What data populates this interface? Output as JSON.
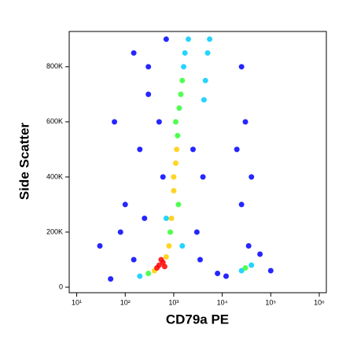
{
  "chart_data": {
    "type": "scatter",
    "x_label": "CD79a PE",
    "y_label": "Side Scatter",
    "x_scale": "log",
    "xlim": [
      7,
      1400000
    ],
    "xticks": [
      {
        "value": 10,
        "label": "10¹"
      },
      {
        "value": 100,
        "label": "10²"
      },
      {
        "value": 1000,
        "label": "10³"
      },
      {
        "value": 10000,
        "label": "10⁴"
      },
      {
        "value": 100000,
        "label": "10⁵"
      },
      {
        "value": 1000000,
        "label": "10⁶"
      }
    ],
    "ylim": [
      -20000,
      928000
    ],
    "yticks": [
      0,
      {
        "value": 200000,
        "label": "200K"
      },
      {
        "value": 400000,
        "label": "400K"
      },
      {
        "value": 600000,
        "label": "600K"
      },
      {
        "value": 800000,
        "label": "800K"
      }
    ],
    "grid": false,
    "series": [
      {
        "color": "#0000ff",
        "x": [
          100,
          200,
          300,
          150,
          50,
          3000,
          2500,
          20000,
          30000,
          25000,
          40000,
          60000,
          100000,
          300,
          150,
          80,
          500,
          600,
          8000,
          3500,
          30,
          25000,
          12000,
          250,
          4000,
          35000,
          60,
          700
        ],
        "values": [
          300000,
          500000,
          700000,
          100000,
          30000,
          200000,
          500000,
          500000,
          600000,
          300000,
          400000,
          120000,
          60000,
          800000,
          850000,
          200000,
          600000,
          400000,
          50000,
          100000,
          150000,
          800000,
          40000,
          250000,
          400000,
          150000,
          600000,
          900000
        ]
      },
      {
        "color": "#00ccff",
        "x": [
          1700,
          1600,
          5000,
          4500,
          5500,
          4200,
          25000,
          40000,
          700,
          200,
          1500,
          2000
        ],
        "values": [
          850000,
          800000,
          850000,
          750000,
          900000,
          680000,
          60000,
          80000,
          250000,
          40000,
          150000,
          900000
        ]
      },
      {
        "color": "#33ff33",
        "x": [
          1200,
          1300,
          1400,
          850,
          300,
          1100,
          1250,
          1500,
          30000
        ],
        "values": [
          550000,
          650000,
          700000,
          200000,
          50000,
          600000,
          300000,
          750000,
          70000
        ]
      },
      {
        "color": "#ffcc00",
        "x": [
          700,
          400,
          800,
          900,
          1000,
          1100,
          1150,
          1000
        ],
        "values": [
          110000,
          60000,
          150000,
          250000,
          350000,
          450000,
          500000,
          400000
        ]
      },
      {
        "color": "#ff0000",
        "x": [
          500,
          600,
          450,
          550,
          650
        ],
        "values": [
          80000,
          90000,
          70000,
          100000,
          75000
        ]
      }
    ]
  }
}
